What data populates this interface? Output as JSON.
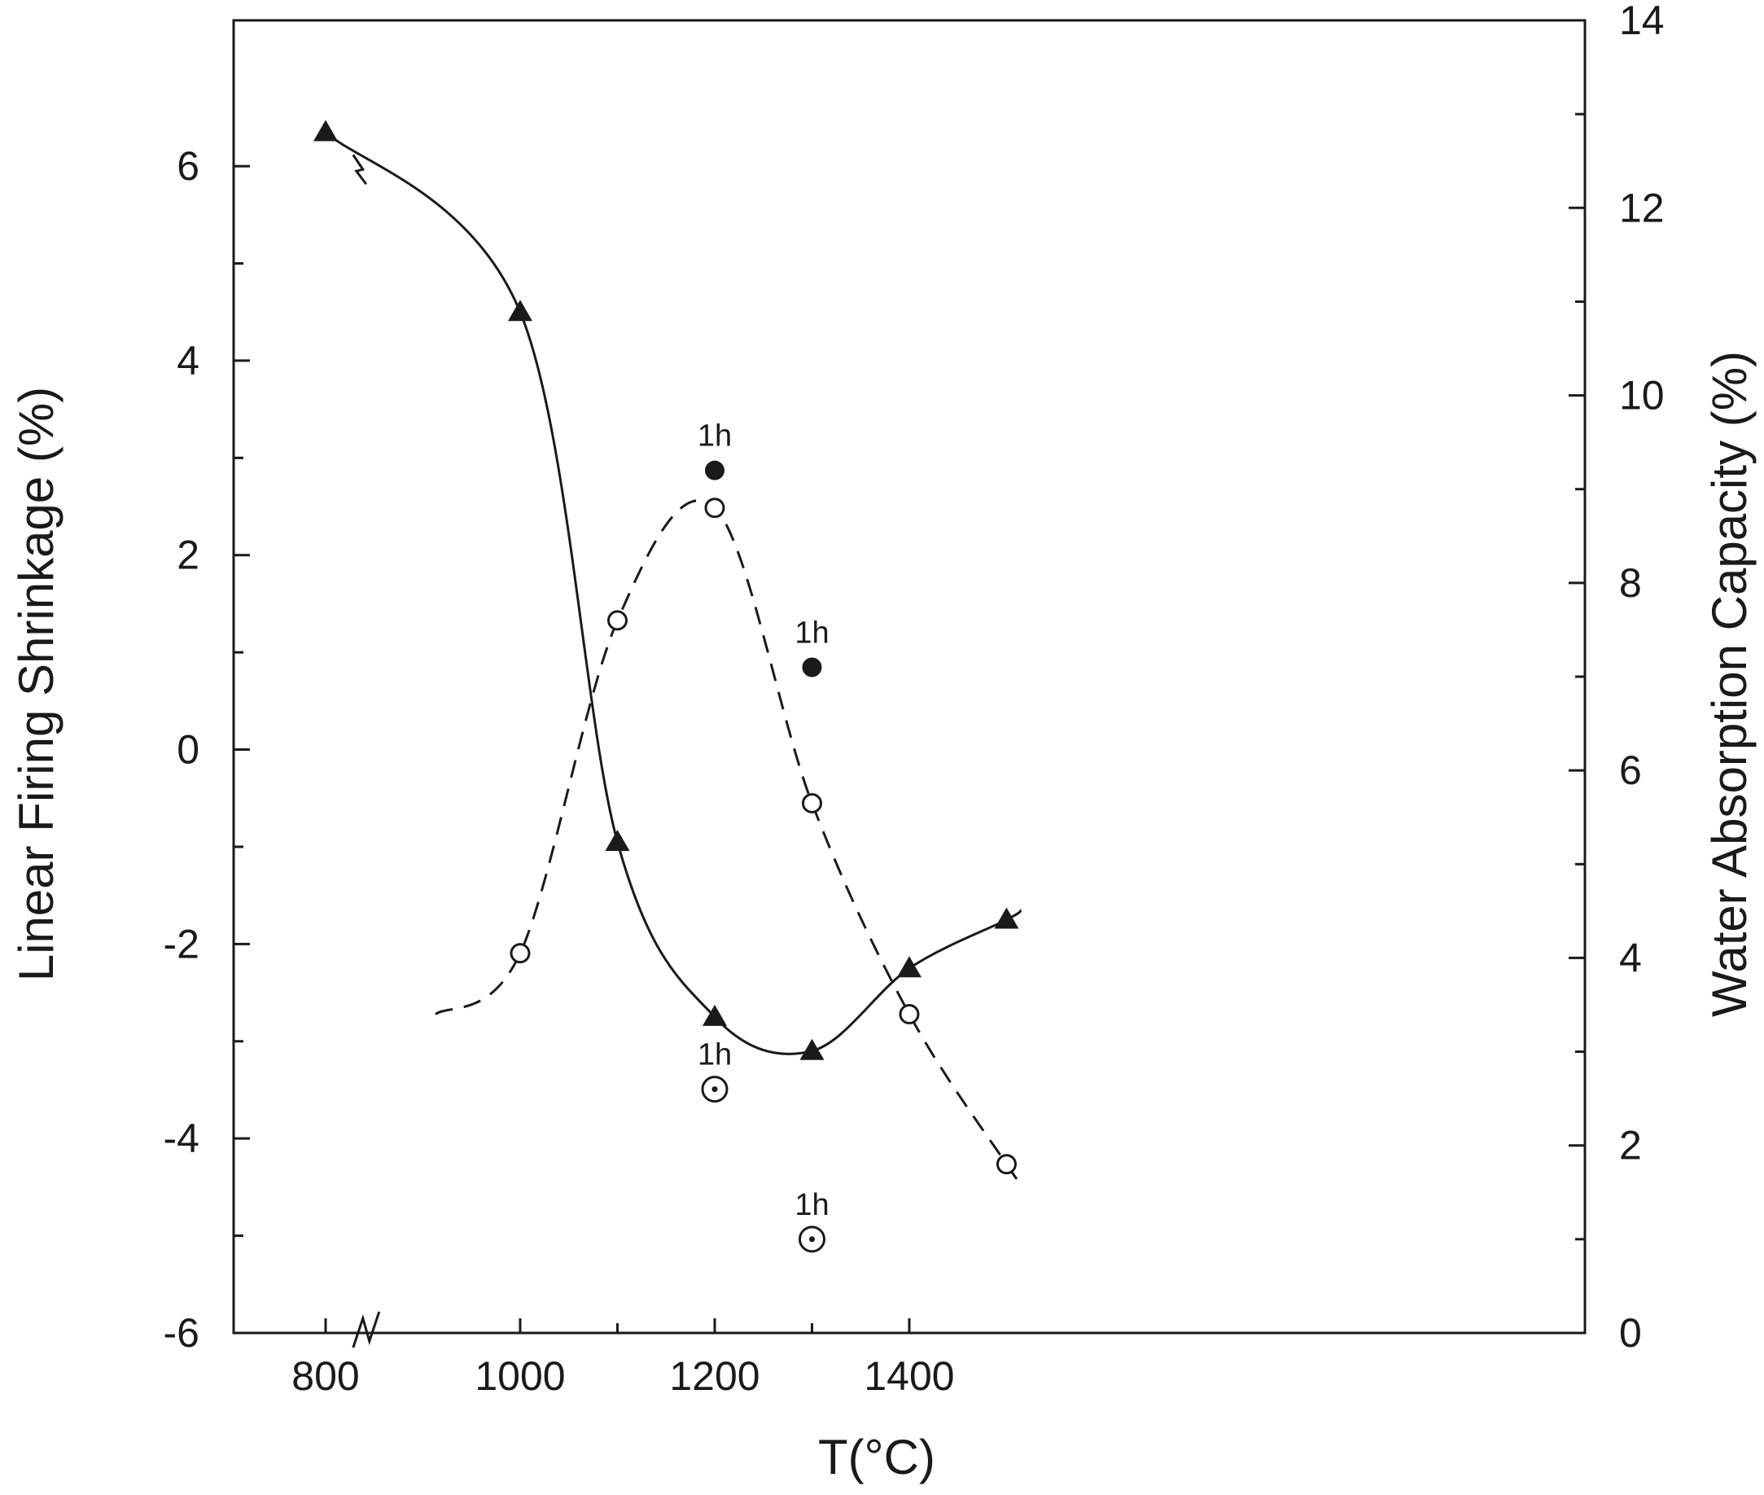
{
  "chart_data": {
    "type": "line",
    "xlabel": "T(°C)",
    "ylabel_left": "Linear Firing Shrinkage (%)",
    "ylabel_right": "Water Absorption Capacity (%)",
    "xlim": [
      750,
      1510
    ],
    "ylim_left": [
      -6,
      7.5
    ],
    "ylim_right": [
      0,
      14
    ],
    "x_ticks": [
      800,
      1000,
      1200,
      1400
    ],
    "x_minor_ticks": [
      1100,
      1300
    ],
    "y_left_ticks": [
      -6,
      -4,
      -2,
      0,
      2,
      4,
      6
    ],
    "y_left_minor_ticks": [
      -5,
      -3,
      -1,
      1,
      3,
      5
    ],
    "y_right_ticks": [
      0,
      2,
      4,
      6,
      8,
      10,
      12,
      14
    ],
    "y_right_minor_ticks": [
      1,
      3,
      5,
      7,
      9,
      11,
      13
    ],
    "axis_break": "x between 800 and 1000",
    "grid": false,
    "legend": "none",
    "series": [
      {
        "axis": "left",
        "marker": "filled-triangle",
        "line": "solid",
        "points": [
          [
            800,
            6.35
          ],
          [
            1000,
            4.5
          ],
          [
            1100,
            -0.95
          ],
          [
            1200,
            -2.75
          ],
          [
            1300,
            -3.1
          ],
          [
            1400,
            -2.25
          ],
          [
            1500,
            -1.75
          ]
        ]
      },
      {
        "axis": "right",
        "marker": "open-circle",
        "line": "dashed",
        "points": [
          [
            1000,
            4.05
          ],
          [
            1100,
            7.6
          ],
          [
            1200,
            8.8
          ],
          [
            1300,
            5.65
          ],
          [
            1400,
            3.4
          ],
          [
            1500,
            1.8
          ]
        ]
      }
    ],
    "annotations": [
      {
        "text": "1h",
        "x": 1200,
        "axis": "right",
        "y": 9.2,
        "marker": "filled-circle"
      },
      {
        "text": "1h",
        "x": 1300,
        "axis": "right",
        "y": 7.1,
        "marker": "filled-circle"
      },
      {
        "text": "1h",
        "x": 1200,
        "axis": "right",
        "y": 2.6,
        "marker": "dotted-circle"
      },
      {
        "text": "1h",
        "x": 1300,
        "axis": "right",
        "y": 1.0,
        "marker": "dotted-circle"
      }
    ]
  }
}
